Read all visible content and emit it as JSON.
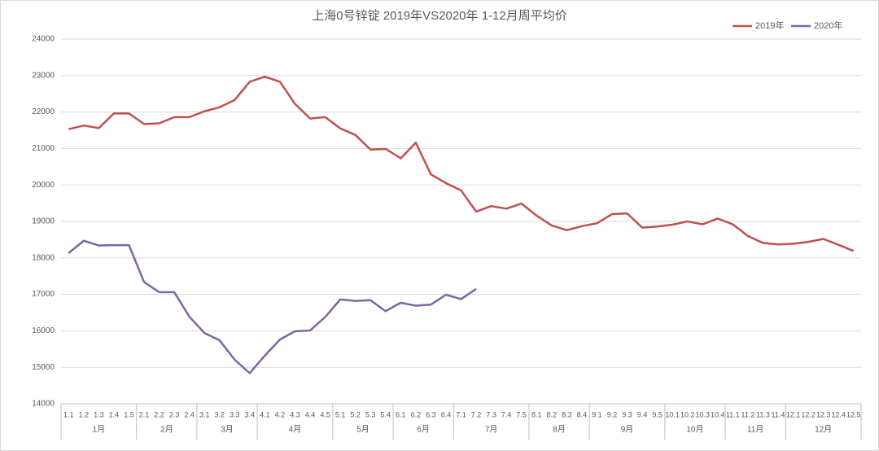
{
  "chart_data": {
    "type": "line",
    "title": "上海0号锌锭  2019年VS2020年  1-12月周平均价",
    "categories": [
      "1.1",
      "1.2",
      "1.3",
      "1.4",
      "1.5",
      "2.1",
      "2.2",
      "2.3",
      "2.4",
      "3.1",
      "3.2",
      "3.3",
      "3.4",
      "4.1",
      "4.2",
      "4.3",
      "4.4",
      "4.5",
      "5.1",
      "5.2",
      "5.3",
      "5.4",
      "6.1",
      "6.2",
      "6.3",
      "6.4",
      "7.1",
      "7.2",
      "7.3",
      "7.4",
      "7.5",
      "8.1",
      "8.2",
      "8.3",
      "8.4",
      "9.1",
      "9.2",
      "9.3",
      "9.4",
      "9.5",
      "10.1",
      "10.2",
      "10.3",
      "10.4",
      "11.1",
      "11.2",
      "11.3",
      "11.4",
      "12.1",
      "12.2",
      "12.3",
      "12.4",
      "12.5"
    ],
    "groups": [
      "1月",
      "2月",
      "3月",
      "4月",
      "5月",
      "6月",
      "7月",
      "8月",
      "9月",
      "10月",
      "11月",
      "12月"
    ],
    "series": [
      {
        "name": "2019年",
        "color": "#c0504d",
        "values": [
          21530,
          21630,
          21560,
          21960,
          21960,
          21670,
          21690,
          21860,
          21860,
          22020,
          22130,
          22330,
          22830,
          22970,
          22830,
          22220,
          21820,
          21860,
          21550,
          21370,
          20970,
          20990,
          20730,
          21160,
          20290,
          20050,
          19850,
          19270,
          19420,
          19350,
          19490,
          19160,
          18890,
          18760,
          18870,
          18950,
          19200,
          19220,
          18830,
          18860,
          18910,
          19000,
          18920,
          19080,
          18920,
          18600,
          18410,
          18370,
          18390,
          18440,
          18520,
          18360,
          18190
        ]
      },
      {
        "name": "2020年",
        "color": "#8064a2",
        "values": [
          18130,
          18470,
          18340,
          18350,
          18350,
          17340,
          17060,
          17060,
          16390,
          15940,
          15740,
          15210,
          14840,
          15320,
          15760,
          15990,
          16010,
          16380,
          16860,
          16820,
          16840,
          16540,
          16770,
          16690,
          16720,
          16990,
          16870,
          17150,
          null,
          null,
          null,
          null,
          null,
          null,
          null,
          null,
          null,
          null,
          null,
          null,
          null,
          null,
          null,
          null,
          null,
          null,
          null,
          null,
          null,
          null,
          null,
          null,
          null
        ]
      }
    ],
    "ylim": [
      14000,
      24000
    ],
    "yticks": [
      14000,
      15000,
      16000,
      17000,
      18000,
      19000,
      20000,
      21000,
      22000,
      23000,
      24000
    ],
    "grid": true,
    "legend": "top-right"
  }
}
